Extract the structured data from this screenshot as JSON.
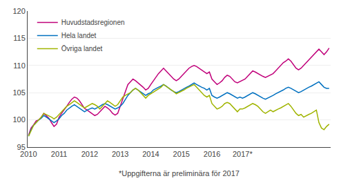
{
  "chart_data": {
    "type": "line",
    "annotations": [
      "*Uppgifterna är preliminära för 2017"
    ],
    "x": [
      2010.0,
      2010.083333,
      2010.166667,
      2010.25,
      2010.333333,
      2010.416667,
      2010.5,
      2010.583333,
      2010.666667,
      2010.75,
      2010.833333,
      2010.916667,
      2011.0,
      2011.083333,
      2011.166667,
      2011.25,
      2011.333333,
      2011.416667,
      2011.5,
      2011.583333,
      2011.666667,
      2011.75,
      2011.833333,
      2011.916667,
      2012.0,
      2012.083333,
      2012.166667,
      2012.25,
      2012.333333,
      2012.416667,
      2012.5,
      2012.583333,
      2012.666667,
      2012.75,
      2012.833333,
      2012.916667,
      2013.0,
      2013.083333,
      2013.166667,
      2013.25,
      2013.333333,
      2013.416667,
      2013.5,
      2013.583333,
      2013.666667,
      2013.75,
      2013.833333,
      2013.916667,
      2014.0,
      2014.083333,
      2014.166667,
      2014.25,
      2014.333333,
      2014.416667,
      2014.5,
      2014.583333,
      2014.666667,
      2014.75,
      2014.833333,
      2014.916667,
      2015.0,
      2015.083333,
      2015.166667,
      2015.25,
      2015.333333,
      2015.416667,
      2015.5,
      2015.583333,
      2015.666667,
      2015.75,
      2015.833333,
      2015.916667,
      2016.0,
      2016.083333,
      2016.166667,
      2016.25,
      2016.333333,
      2016.416667,
      2016.5,
      2016.583333,
      2016.666667,
      2016.75,
      2016.833333,
      2016.916667,
      2017.0,
      2017.083333,
      2017.166667,
      2017.25,
      2017.333333,
      2017.416667,
      2017.5,
      2017.583333,
      2017.666667,
      2017.75,
      2017.833333,
      2017.916667,
      2018.0,
      2018.083333,
      2018.166667,
      2018.25,
      2018.333333,
      2018.416667,
      2018.5,
      2018.583333,
      2018.666667,
      2018.75,
      2018.833333,
      2018.916667,
      2019.0,
      2019.083333,
      2019.166667,
      2019.25,
      2019.333333,
      2019.416667,
      2019.5,
      2019.583333,
      2019.666667,
      2019.75,
      2019.833333
    ],
    "series": [
      {
        "name": "Huvudstadsregionen",
        "color": "#c0007a",
        "values": [
          97.2,
          98.5,
          99.1,
          99.8,
          100.0,
          100.5,
          101.2,
          100.8,
          100.3,
          99.5,
          98.8,
          99.2,
          100.5,
          101.2,
          101.8,
          102.5,
          103.2,
          103.8,
          104.2,
          104.0,
          103.5,
          102.8,
          102.1,
          101.8,
          101.5,
          101.2,
          100.8,
          101.0,
          101.5,
          102.0,
          102.5,
          102.2,
          101.8,
          101.2,
          100.9,
          101.2,
          102.5,
          103.8,
          105.2,
          106.5,
          107.0,
          107.5,
          107.2,
          106.8,
          106.5,
          106.0,
          105.5,
          105.8,
          106.5,
          107.2,
          107.8,
          108.5,
          109.0,
          109.5,
          109.0,
          108.5,
          108.0,
          107.5,
          107.2,
          107.5,
          108.0,
          108.5,
          109.0,
          109.5,
          109.8,
          110.0,
          109.8,
          109.5,
          109.2,
          108.8,
          108.5,
          108.8,
          107.5,
          107.0,
          106.5,
          106.8,
          107.2,
          107.8,
          108.2,
          108.0,
          107.5,
          107.0,
          106.8,
          107.0,
          107.2,
          107.5,
          108.0,
          108.5,
          109.0,
          108.8,
          108.5,
          108.2,
          108.0,
          107.8,
          108.0,
          108.2,
          108.5,
          109.0,
          109.5,
          110.0,
          110.5,
          110.8,
          111.2,
          110.8,
          110.2,
          109.5,
          109.2,
          109.5,
          110.0,
          110.5,
          111.0,
          111.5,
          112.0,
          112.5,
          113.0,
          112.5,
          112.0,
          112.5,
          113.2
        ]
      },
      {
        "name": "Hela landet",
        "color": "#0070c0",
        "values": [
          97.0,
          98.2,
          99.0,
          99.5,
          100.0,
          100.3,
          100.8,
          100.5,
          100.2,
          99.8,
          99.5,
          99.8,
          100.2,
          100.8,
          101.2,
          101.8,
          102.2,
          102.5,
          102.8,
          102.5,
          102.2,
          101.8,
          101.5,
          101.8,
          102.0,
          102.2,
          102.0,
          102.2,
          102.5,
          102.8,
          103.0,
          102.8,
          102.5,
          102.2,
          102.0,
          102.2,
          102.5,
          103.0,
          103.8,
          104.5,
          105.0,
          105.5,
          105.8,
          105.5,
          105.2,
          104.8,
          104.5,
          104.8,
          105.0,
          105.5,
          105.8,
          106.0,
          106.2,
          106.5,
          106.2,
          105.8,
          105.5,
          105.2,
          105.0,
          105.2,
          105.5,
          105.8,
          106.0,
          106.2,
          106.5,
          106.8,
          106.5,
          106.2,
          106.0,
          105.8,
          105.5,
          105.8,
          104.5,
          104.2,
          104.0,
          104.2,
          104.5,
          104.8,
          105.0,
          104.8,
          104.5,
          104.2,
          104.0,
          104.2,
          104.0,
          104.2,
          104.5,
          104.8,
          105.0,
          104.8,
          104.5,
          104.2,
          104.0,
          103.8,
          104.0,
          104.2,
          104.5,
          104.8,
          105.0,
          105.2,
          105.5,
          105.8,
          106.0,
          105.8,
          105.5,
          105.2,
          105.0,
          105.2,
          105.5,
          105.8,
          106.0,
          106.2,
          106.5,
          106.8,
          107.0,
          106.5,
          106.0,
          105.8,
          105.8
        ]
      },
      {
        "name": "Övriga landet",
        "color": "#a0b400",
        "values": [
          97.0,
          98.0,
          99.0,
          99.5,
          100.0,
          100.5,
          101.2,
          101.0,
          100.8,
          100.5,
          100.2,
          100.5,
          101.0,
          101.5,
          102.0,
          102.5,
          102.8,
          103.2,
          103.5,
          103.2,
          102.8,
          102.5,
          102.2,
          102.5,
          102.8,
          103.0,
          102.8,
          102.5,
          102.0,
          102.5,
          103.0,
          103.5,
          103.2,
          102.8,
          102.5,
          102.8,
          103.5,
          104.2,
          104.5,
          104.8,
          105.0,
          105.5,
          105.8,
          105.5,
          105.0,
          104.5,
          104.0,
          104.5,
          104.8,
          105.2,
          105.5,
          105.8,
          106.0,
          106.5,
          106.2,
          105.8,
          105.5,
          105.2,
          104.8,
          105.0,
          105.2,
          105.5,
          105.8,
          106.0,
          106.2,
          106.5,
          106.0,
          105.5,
          105.0,
          104.5,
          104.2,
          104.5,
          103.0,
          102.5,
          102.0,
          102.2,
          102.5,
          103.0,
          103.2,
          103.0,
          102.5,
          102.0,
          101.5,
          102.0,
          102.0,
          102.2,
          102.5,
          102.8,
          103.0,
          102.8,
          102.5,
          102.0,
          101.5,
          101.2,
          101.5,
          101.8,
          101.5,
          101.8,
          102.0,
          102.2,
          102.5,
          102.8,
          103.0,
          102.5,
          101.8,
          101.2,
          100.8,
          101.0,
          100.5,
          100.8,
          101.0,
          101.2,
          101.5,
          101.8,
          99.5,
          98.5,
          98.2,
          98.8,
          99.2
        ]
      }
    ],
    "xlim": [
      2009.97,
      2019.8833333333332
    ],
    "xticks": [
      2010,
      2011,
      2012,
      2013,
      2014,
      2015,
      2016,
      {
        "value": 2017,
        "label": "2017*"
      }
    ],
    "ylim": [
      95,
      120
    ],
    "yticks": [
      95,
      100,
      105,
      110,
      115,
      120
    ],
    "grid": true,
    "legend": "upper left"
  }
}
